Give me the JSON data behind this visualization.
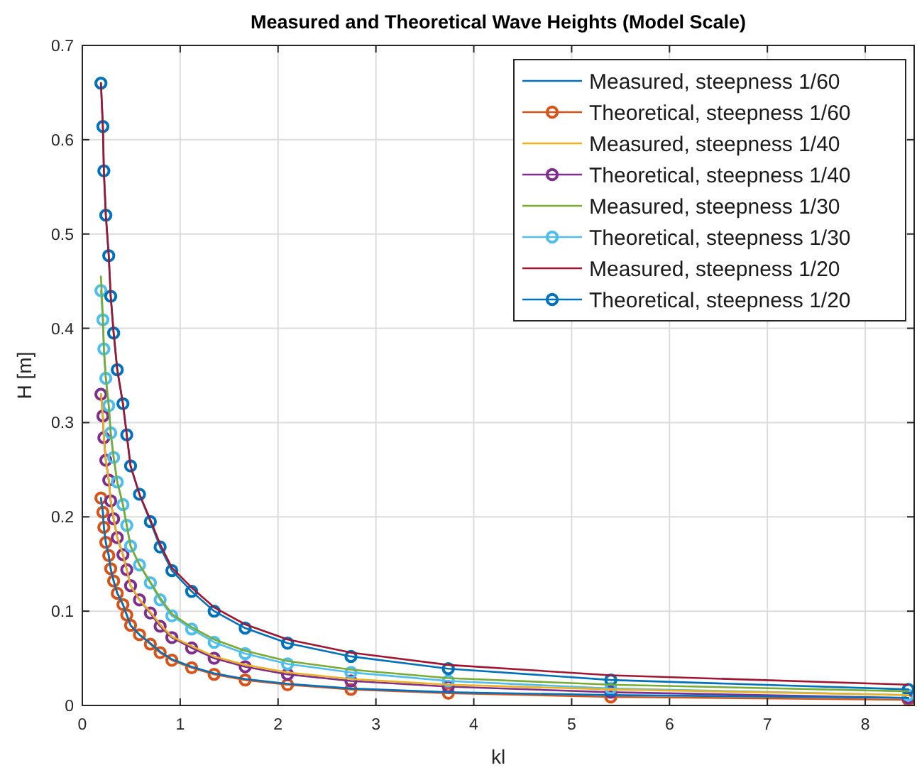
{
  "chart_data": {
    "type": "line",
    "title": "Measured and Theoretical Wave Heights (Model Scale)",
    "xlabel": "kl",
    "ylabel": "H [m]",
    "x": [
      0.19,
      0.21,
      0.22,
      0.24,
      0.27,
      0.29,
      0.32,
      0.357,
      0.415,
      0.454,
      0.493,
      0.584,
      0.695,
      0.795,
      0.915,
      1.117,
      1.347,
      1.664,
      2.097,
      2.745,
      3.74,
      5.4,
      8.44
    ],
    "xlim": [
      0,
      8.5
    ],
    "xticks": [
      0,
      1,
      2,
      3,
      4,
      5,
      6,
      7,
      8
    ],
    "ylim": [
      0,
      0.7
    ],
    "yticks": [
      0,
      0.1,
      0.2,
      0.3,
      0.4,
      0.5,
      0.6,
      0.7
    ],
    "grid": true,
    "legend": "top right",
    "series": [
      {
        "name": "Measured, steepness 1/60",
        "color": "#0072bd",
        "marker": "none",
        "values": [
          0.22,
          0.205,
          0.189,
          0.173,
          0.159,
          0.145,
          0.132,
          0.119,
          0.107,
          0.096,
          0.085,
          0.075,
          0.066,
          0.057,
          0.049,
          0.041,
          0.034,
          0.028,
          0.023,
          0.018,
          0.014,
          0.011,
          0.008
        ]
      },
      {
        "name": "Theoretical, steepness 1/60",
        "color": "#d95319",
        "marker": "circle",
        "values": [
          0.22,
          0.205,
          0.189,
          0.173,
          0.159,
          0.145,
          0.132,
          0.119,
          0.107,
          0.096,
          0.085,
          0.075,
          0.065,
          0.056,
          0.048,
          0.04,
          0.033,
          0.027,
          0.022,
          0.017,
          0.013,
          0.009,
          0.006
        ]
      },
      {
        "name": "Measured, steepness 1/40",
        "color": "#edb120",
        "marker": "none",
        "values": [
          0.33,
          0.307,
          0.284,
          0.26,
          0.239,
          0.217,
          0.198,
          0.178,
          0.16,
          0.144,
          0.127,
          0.112,
          0.099,
          0.086,
          0.073,
          0.063,
          0.052,
          0.043,
          0.035,
          0.028,
          0.022,
          0.017,
          0.011
        ]
      },
      {
        "name": "Theoretical, steepness 1/40",
        "color": "#7e2f8e",
        "marker": "circle",
        "values": [
          0.33,
          0.307,
          0.284,
          0.26,
          0.239,
          0.217,
          0.198,
          0.178,
          0.16,
          0.144,
          0.127,
          0.112,
          0.098,
          0.084,
          0.072,
          0.061,
          0.05,
          0.041,
          0.033,
          0.026,
          0.02,
          0.014,
          0.008
        ]
      },
      {
        "name": "Measured, steepness 1/30",
        "color": "#77ac30",
        "marker": "none",
        "values": [
          0.455,
          0.412,
          0.378,
          0.347,
          0.318,
          0.289,
          0.263,
          0.237,
          0.213,
          0.191,
          0.169,
          0.149,
          0.131,
          0.114,
          0.097,
          0.083,
          0.07,
          0.058,
          0.047,
          0.038,
          0.029,
          0.022,
          0.015
        ]
      },
      {
        "name": "Theoretical, steepness 1/30",
        "color": "#4dbeee",
        "marker": "circle",
        "values": [
          0.44,
          0.409,
          0.378,
          0.347,
          0.318,
          0.289,
          0.263,
          0.237,
          0.213,
          0.191,
          0.169,
          0.149,
          0.13,
          0.112,
          0.095,
          0.081,
          0.067,
          0.055,
          0.044,
          0.035,
          0.026,
          0.018,
          0.011
        ]
      },
      {
        "name": "Measured, steepness 1/20",
        "color": "#a2142f",
        "marker": "none",
        "values": [
          0.66,
          0.614,
          0.567,
          0.52,
          0.477,
          0.434,
          0.395,
          0.356,
          0.32,
          0.287,
          0.254,
          0.224,
          0.197,
          0.171,
          0.146,
          0.125,
          0.104,
          0.086,
          0.07,
          0.056,
          0.043,
          0.032,
          0.022
        ]
      },
      {
        "name": "Theoretical, steepness 1/20",
        "color": "#0072bd",
        "marker": "circle",
        "values": [
          0.66,
          0.614,
          0.567,
          0.52,
          0.477,
          0.434,
          0.395,
          0.356,
          0.32,
          0.287,
          0.254,
          0.224,
          0.195,
          0.168,
          0.143,
          0.121,
          0.1,
          0.082,
          0.066,
          0.052,
          0.039,
          0.027,
          0.017
        ]
      }
    ]
  }
}
